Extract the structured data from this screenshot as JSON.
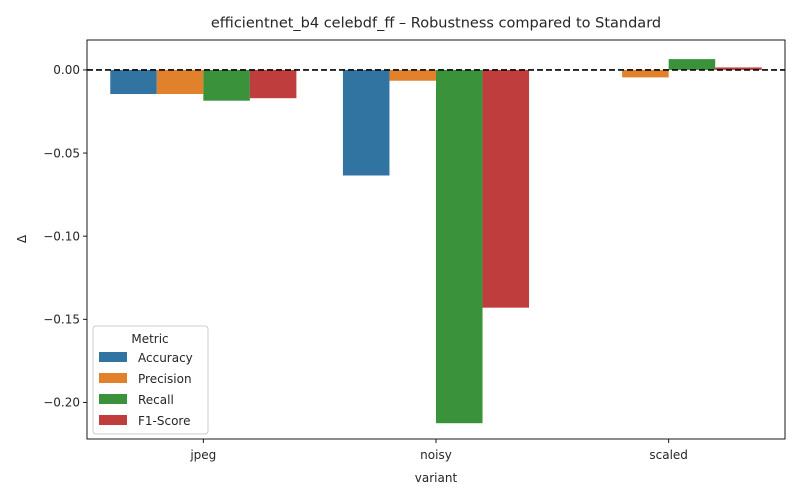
{
  "chart_data": {
    "type": "bar",
    "title": "efficientnet_b4 celebdf_ff – Robustness compared to Standard",
    "xlabel": "variant",
    "ylabel": "Δ",
    "categories": [
      "jpeg",
      "noisy",
      "scaled"
    ],
    "series": [
      {
        "name": "Accuracy",
        "color": "#3274a1",
        "values": [
          -0.0145,
          -0.0635,
          0.0
        ]
      },
      {
        "name": "Precision",
        "color": "#e1812c",
        "values": [
          -0.0145,
          -0.0065,
          -0.0045
        ]
      },
      {
        "name": "Recall",
        "color": "#3a923a",
        "values": [
          -0.0185,
          -0.2125,
          0.0065
        ]
      },
      {
        "name": "F1-Score",
        "color": "#c03d3e",
        "values": [
          -0.017,
          -0.143,
          0.0015
        ]
      }
    ],
    "ylim": [
      -0.222,
      0.018
    ],
    "yticks": [
      0.0,
      -0.05,
      -0.1,
      -0.15,
      -0.2
    ],
    "ytick_labels": [
      "0.00",
      "−0.05",
      "−0.10",
      "−0.15",
      "−0.20"
    ],
    "reference_line": {
      "y": 0.0,
      "style": "dashed",
      "color": "#000000"
    },
    "legend": {
      "title": "Metric",
      "placement": "lower-left"
    },
    "grid": false
  }
}
